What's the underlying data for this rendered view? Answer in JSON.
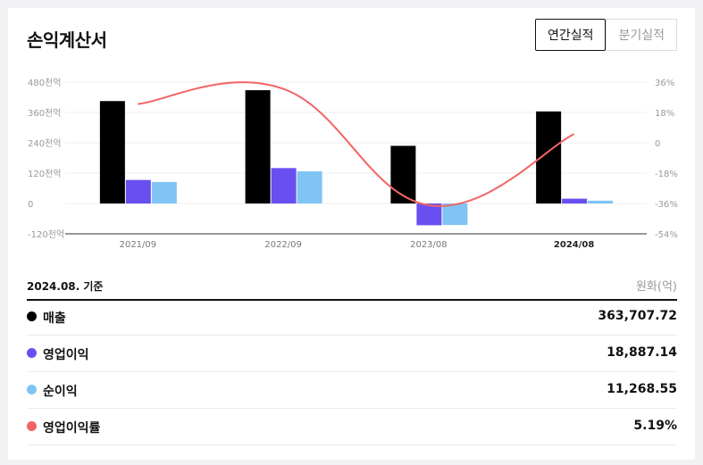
{
  "header": {
    "title": "손익계산서",
    "tabs": [
      {
        "label": "연간실적",
        "active": true
      },
      {
        "label": "분기실적",
        "active": false
      }
    ]
  },
  "chart_data": {
    "type": "bar",
    "categories": [
      "2021/09",
      "2022/09",
      "2023/08",
      "2024/08"
    ],
    "highlight_category": "2024/08",
    "left_axis": {
      "ticks": [
        "480천억",
        "360천억",
        "240천억",
        "120천억",
        "0",
        "-120천억"
      ],
      "ylim": [
        -120,
        480
      ],
      "unit": "천억"
    },
    "right_axis": {
      "ticks": [
        "36%",
        "18%",
        "0",
        "-18%",
        "-36%",
        "-54%"
      ],
      "ylim": [
        -54,
        36
      ],
      "unit": "%"
    },
    "series": [
      {
        "name": "매출",
        "type": "bar",
        "axis": "left",
        "color": "#000000",
        "values": [
          405,
          448,
          228,
          364
        ]
      },
      {
        "name": "영업이익",
        "type": "bar",
        "axis": "left",
        "color": "#6a4ff0",
        "values": [
          93,
          140,
          -86,
          19
        ]
      },
      {
        "name": "순이익",
        "type": "bar",
        "axis": "left",
        "color": "#7fc4f5",
        "values": [
          85,
          127,
          -85,
          11
        ]
      },
      {
        "name": "영업이익률",
        "type": "line",
        "axis": "right",
        "color": "#f26464",
        "values": [
          23,
          32,
          -37,
          5.19
        ]
      }
    ],
    "grid": true,
    "legend": "none"
  },
  "summary": {
    "basis": "2024.08. 기준",
    "unit": "원화(억)",
    "rows": [
      {
        "label": "매출",
        "value": "363,707.72",
        "color": "#000000"
      },
      {
        "label": "영업이익",
        "value": "18,887.14",
        "color": "#6a4ff0"
      },
      {
        "label": "순이익",
        "value": "11,268.55",
        "color": "#7fc4f5"
      },
      {
        "label": "영업이익률",
        "value": "5.19%",
        "color": "#f26464"
      }
    ]
  }
}
